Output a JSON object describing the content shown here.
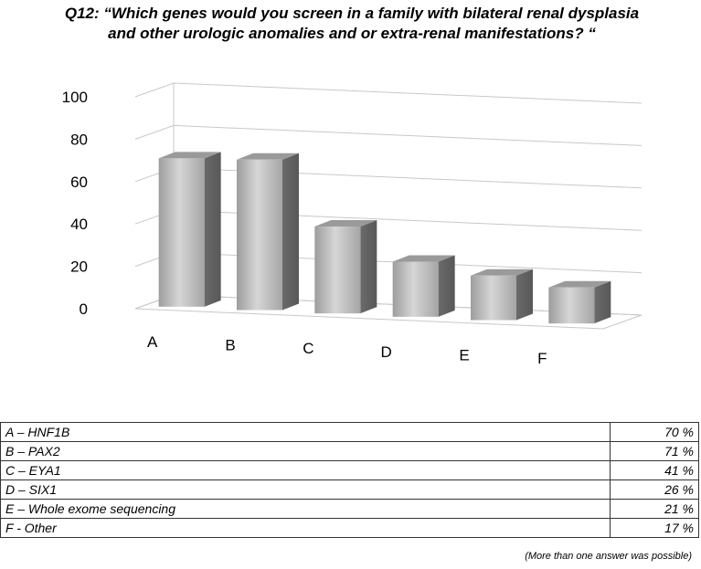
{
  "title": "Q12:  “Which genes would you screen in a family with bilateral renal dysplasia and other urologic anomalies and or extra-renal manifestations? “",
  "chart_data": {
    "type": "bar",
    "categories": [
      "A",
      "B",
      "C",
      "D",
      "E",
      "F"
    ],
    "values": [
      70,
      71,
      41,
      26,
      21,
      17
    ],
    "ylim": [
      0,
      100
    ],
    "yticks": [
      "0",
      "20",
      "40",
      "60",
      "80",
      "100"
    ],
    "grid": true,
    "colors": {
      "bar": "#b5b5b5",
      "bar_top": "#9a9a9a",
      "bar_side": "#6e6e6e",
      "grid": "#c8c8c8"
    }
  },
  "table": {
    "rows": [
      {
        "label": "A – HNF1B",
        "value": "70 %"
      },
      {
        "label": "B – PAX2",
        "value": "71 %"
      },
      {
        "label": "C – EYA1",
        "value": "41 %"
      },
      {
        "label": "D – SIX1",
        "value": "26 %"
      },
      {
        "label": "E – Whole exome sequencing",
        "value": "21 %"
      },
      {
        "label": "F - Other",
        "value": "17 %"
      }
    ],
    "footnote": "(More than one answer was possible)"
  }
}
